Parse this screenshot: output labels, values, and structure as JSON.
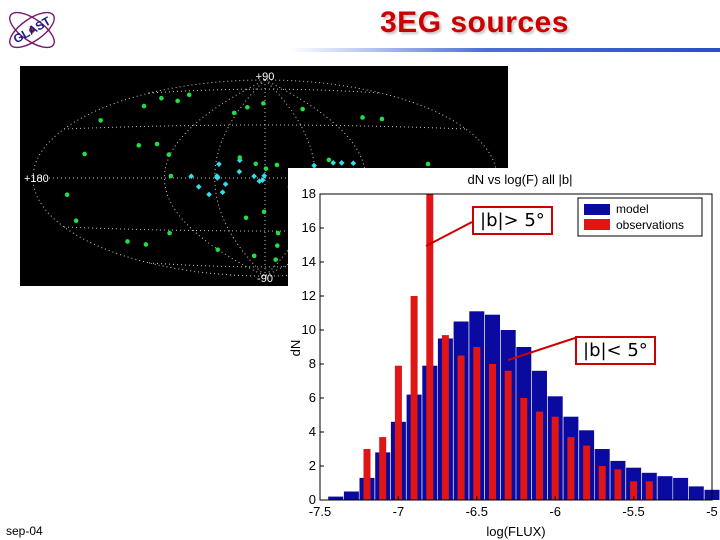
{
  "header": {
    "title": "3EG sources",
    "logo_text": "GLAST"
  },
  "footer": {
    "date": "sep-04"
  },
  "skymap": {
    "labels": {
      "top": "+90",
      "left": "+180",
      "bottom": "-90"
    },
    "colors": {
      "background": "#000000",
      "grid": "#c8c8c8",
      "sources_high_b": "#22dd44",
      "sources_low_b": "#33ddee"
    }
  },
  "annotations": {
    "high_lat": "|b|> 5°",
    "low_lat": "|b|< 5°"
  },
  "chart_data": {
    "type": "bar",
    "title": "dN vs log(F) all |b|",
    "xlabel": "log(FLUX)",
    "ylabel": "dN",
    "xlim": [
      -7.5,
      -5
    ],
    "ylim": [
      0,
      18
    ],
    "xticks": [
      "-7.5",
      "-7",
      "-6.5",
      "-6",
      "-5.5",
      "-5"
    ],
    "yticks": [
      "0",
      "2",
      "4",
      "6",
      "8",
      "10",
      "12",
      "14",
      "16",
      "18"
    ],
    "grid": false,
    "legend_position": "top-right",
    "series": [
      {
        "name": "model",
        "color": "#0a0aa0",
        "x": [
          -7.4,
          -7.3,
          -7.2,
          -7.1,
          -7.0,
          -6.9,
          -6.8,
          -6.7,
          -6.6,
          -6.5,
          -6.4,
          -6.3,
          -6.2,
          -6.1,
          -6.0,
          -5.9,
          -5.8,
          -5.7,
          -5.6,
          -5.5,
          -5.4,
          -5.3,
          -5.2,
          -5.1,
          -5.0
        ],
        "values": [
          0.2,
          0.5,
          1.3,
          2.8,
          4.6,
          6.2,
          7.9,
          9.5,
          10.5,
          11.1,
          10.9,
          10.0,
          9.0,
          7.6,
          6.1,
          4.9,
          4.1,
          3.0,
          2.3,
          1.9,
          1.6,
          1.4,
          1.3,
          0.8,
          0.6
        ]
      },
      {
        "name": "observations",
        "color": "#e01515",
        "x": [
          -7.2,
          -7.1,
          -7.0,
          -6.9,
          -6.8,
          -6.7,
          -6.6,
          -6.5,
          -6.4,
          -6.3,
          -6.2,
          -6.1,
          -6.0,
          -5.9,
          -5.8,
          -5.7,
          -5.6,
          -5.5,
          -5.4
        ],
        "values": [
          3.0,
          3.7,
          7.9,
          12.0,
          18.0,
          9.7,
          8.5,
          9.0,
          8.0,
          7.6,
          6.0,
          5.2,
          4.9,
          3.7,
          3.2,
          2.0,
          1.8,
          1.1,
          1.1
        ]
      }
    ]
  }
}
